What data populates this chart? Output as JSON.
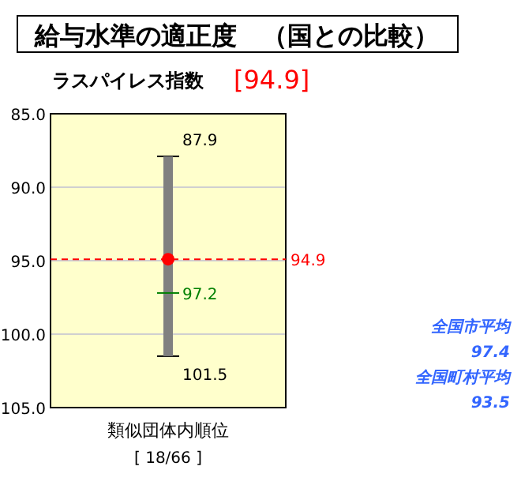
{
  "chart_data": {
    "type": "bar",
    "title": "給与水準の適正度　（国との比較）",
    "subtitle": "ラスパイレス指数",
    "categories": [
      "類似団体内順位"
    ],
    "xlabel": "[ 18/66 ]",
    "ylim": [
      105,
      85
    ],
    "yticks": [
      {
        "value": 85,
        "label": "85.0"
      },
      {
        "value": 90,
        "label": "90.0"
      },
      {
        "value": 95,
        "label": "95.0"
      },
      {
        "value": 100,
        "label": "100.0"
      },
      {
        "value": 105,
        "label": "105.0"
      }
    ],
    "grid": "y",
    "series": [
      {
        "color": "#808080",
        "base": [
          87.9
        ],
        "values": [
          13.6
        ]
      },
      {
        "type": "scatter",
        "color": "#ff0000",
        "marker": "circle",
        "values": [
          94.9
        ]
      }
    ],
    "ref_lines": [
      {
        "axis": "y",
        "value": 94.9,
        "label": "94.9",
        "color": "#ff0000",
        "line_style": "dashed"
      }
    ],
    "annotations": [
      {
        "text": "87.9",
        "x": "類似団体内順位",
        "y": 87.9
      },
      {
        "text": "101.5",
        "x": "類似団体内順位",
        "y": 101.5
      },
      {
        "text": "97.2",
        "x": "類似団体内順位",
        "y": 97.2
      },
      "[94.9]",
      "全国市平均",
      "97.4",
      "全国町村平均",
      "93.5"
    ]
  }
}
